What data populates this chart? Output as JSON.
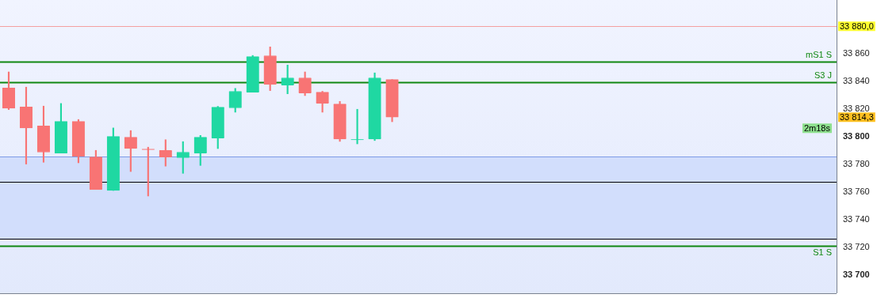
{
  "chart_data": {
    "type": "candlestick",
    "categories": [
      null,
      null,
      null,
      null,
      null,
      null,
      null,
      null,
      null,
      null,
      null,
      null,
      null,
      null,
      null,
      null,
      null,
      null,
      null,
      null,
      null,
      null,
      null,
      null,
      null,
      null,
      null,
      null,
      null,
      null,
      null,
      null,
      null,
      null,
      null,
      null,
      null,
      null,
      null,
      null,
      null,
      null,
      null,
      null,
      null,
      null,
      null,
      null
    ],
    "ohlc": [
      [
        33835.4,
        33847.0,
        33819.8,
        33820.7
      ],
      [
        33821.7,
        33836.0,
        33780.4,
        33806.5
      ],
      [
        33808.0,
        33822.3,
        33781.7,
        33789.0
      ],
      [
        33788.4,
        33824.2,
        33788.4,
        33811.2
      ],
      [
        33811.2,
        33812.6,
        33781.3,
        33786.1
      ],
      [
        33785.5,
        33790.3,
        33762.1,
        33762.1
      ],
      [
        33761.3,
        33806.5,
        33761.3,
        33800.4
      ],
      [
        33799.8,
        33804.6,
        33775.0,
        33791.8
      ],
      [
        33791.2,
        33792.6,
        33757.3,
        33790.8
      ],
      [
        33790.3,
        33798.0,
        33778.9,
        33785.5
      ],
      [
        33785.0,
        33796.6,
        33773.7,
        33789.0
      ],
      [
        33788.4,
        33801.1,
        33779.4,
        33799.8
      ],
      [
        33799.2,
        33822.1,
        33791.6,
        33821.5
      ],
      [
        33821.0,
        33835.1,
        33817.9,
        33833.0
      ],
      [
        33832.4,
        33858.9,
        33832.4,
        33858.1
      ],
      [
        33858.7,
        33865.1,
        33833.5,
        33838.1
      ],
      [
        33837.5,
        33852.0,
        33831.2,
        33842.7
      ],
      [
        33842.7,
        33847.0,
        33829.9,
        33831.8
      ],
      [
        33832.4,
        33833.0,
        33817.9,
        33824.4
      ],
      [
        33823.8,
        33825.7,
        33796.8,
        33798.5
      ],
      [
        33797.9,
        33820.0,
        33795.0,
        33798.3
      ],
      [
        33798.5,
        33846.3,
        33797.4,
        33842.7
      ],
      [
        33841.5,
        33841.5,
        33811.0,
        33814.3
      ],
      null,
      null,
      null,
      null,
      null,
      null,
      null,
      null,
      null,
      null,
      null,
      null,
      null,
      null,
      null,
      null,
      null,
      null,
      null,
      null,
      null,
      null,
      null,
      null,
      null
    ],
    "colors": [
      "#f87474",
      "#f87474",
      "#f87474",
      "#1fd8a2",
      "#f87474",
      "#f87474",
      "#1fd8a2",
      "#f87474",
      "#f87474",
      "#f87474",
      "#1fd8a2",
      "#1fd8a2",
      "#1fd8a2",
      "#1fd8a2",
      "#1fd8a2",
      "#f87474",
      "#1fd8a2",
      "#f87474",
      "#f87474",
      "#f87474",
      "#1fd8a2",
      "#1fd8a2",
      "#f87474",
      null,
      null,
      null,
      null,
      null,
      null,
      null,
      null,
      null,
      null,
      null,
      null,
      null,
      null,
      null,
      null,
      null,
      null,
      null,
      null,
      null,
      null,
      null,
      null,
      null
    ],
    "value_labels": [
      null,
      null,
      null,
      null,
      null,
      null,
      null,
      null,
      null,
      null,
      null,
      null,
      null,
      null,
      null,
      null,
      null,
      null,
      null,
      null,
      null,
      null,
      "33 814,3",
      null,
      null,
      null,
      null,
      null,
      null,
      null,
      null,
      null,
      null,
      null,
      null,
      null,
      null,
      null,
      null,
      null,
      null,
      null,
      null,
      null,
      null,
      null,
      null,
      null
    ],
    "ylim": [
      33687,
      33899
    ],
    "yticks": [
      {
        "value": 33700,
        "label": "33 700"
      },
      {
        "value": 33720,
        "label": "33 720"
      },
      {
        "value": 33740,
        "label": "33 740"
      },
      {
        "value": 33760,
        "label": "33 760"
      },
      {
        "value": 33780,
        "label": "33 780"
      },
      {
        "value": 33800,
        "label": "33 800"
      },
      {
        "value": 33820,
        "label": "33 820"
      },
      {
        "value": 33840,
        "label": "33 840"
      },
      {
        "value": 33860,
        "label": "33 860"
      }
    ],
    "tick_labels": "y",
    "grid": false,
    "legend": false,
    "bands": [
      {
        "axis": "y",
        "from": 33726.3,
        "to": 33785.7,
        "color": "#d2defc"
      }
    ],
    "ref_lines": [
      {
        "axis": "y",
        "value": 33854.3,
        "label": "mS1 S",
        "color": "#118811"
      },
      {
        "axis": "y",
        "value": 33839.4,
        "label": "S3 J",
        "color": "#118811"
      },
      {
        "axis": "y",
        "value": 33721.1,
        "label": "S1 S",
        "color": "#118811"
      },
      {
        "axis": "y",
        "value": 33785.7,
        "color": "#7d9be6"
      },
      {
        "axis": "y",
        "value": 33767.4,
        "color": "#000000"
      },
      {
        "axis": "y",
        "value": 33726.3,
        "color": "#000000"
      },
      {
        "axis": "y",
        "value": 33880,
        "label": "33 880,0",
        "color": "#f4a0a0"
      }
    ],
    "annotations": [
      "2m18s"
    ]
  }
}
